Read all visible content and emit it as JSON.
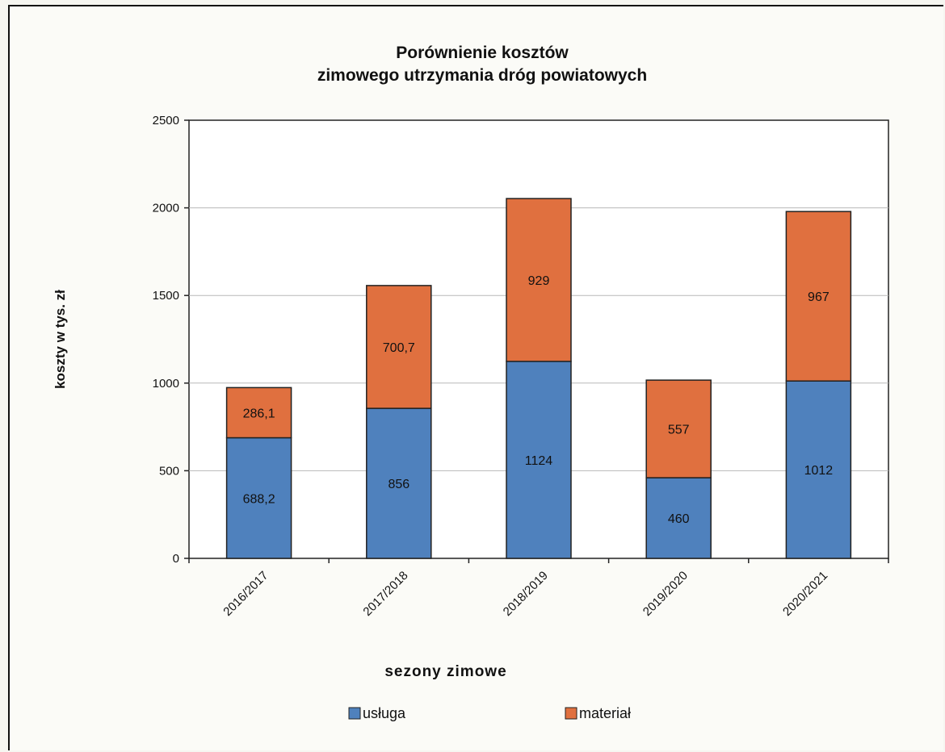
{
  "chart_data": {
    "type": "bar",
    "stacked": true,
    "title": [
      "Porównienie kosztów",
      "zimowego utrzymania dróg powiatowych"
    ],
    "xlabel": "sezony  zimowe",
    "ylabel": "koszty w tys. zł",
    "ylim": [
      0,
      2500
    ],
    "yticks": [
      0,
      500,
      1000,
      1500,
      2000,
      2500
    ],
    "grid": true,
    "legend_position": "bottom",
    "categories": [
      "2016/2017",
      "2017/2018",
      "2018/2019",
      "2019/2020",
      "2020/2021"
    ],
    "series": [
      {
        "name": "usługa",
        "color": "#4f81bd",
        "values": [
          688.2,
          856,
          1124,
          460,
          1012
        ],
        "labels": [
          "688,2",
          "856",
          "1124",
          "460",
          "1012"
        ]
      },
      {
        "name": "materiał",
        "color": "#e0703f",
        "values": [
          286.1,
          700.7,
          929,
          557,
          967
        ],
        "labels": [
          "286,1",
          "700,7",
          "929",
          "557",
          "967"
        ]
      }
    ]
  }
}
